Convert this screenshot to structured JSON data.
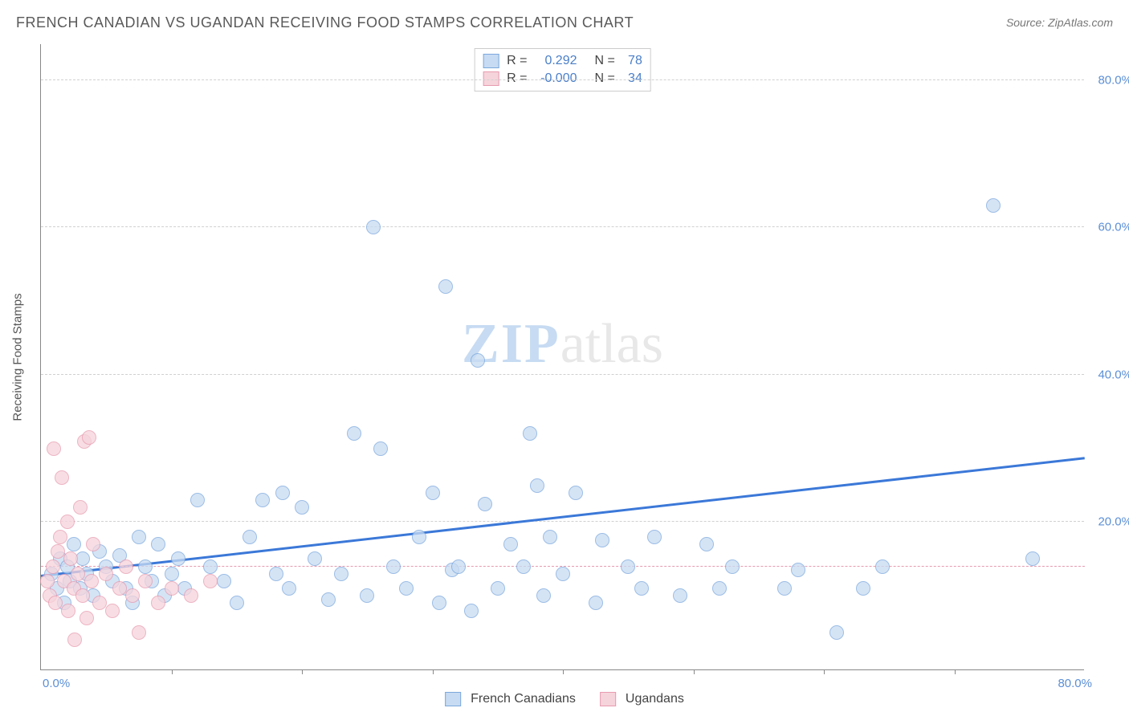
{
  "title": "FRENCH CANADIAN VS UGANDAN RECEIVING FOOD STAMPS CORRELATION CHART",
  "source": "Source: ZipAtlas.com",
  "yaxis_title": "Receiving Food Stamps",
  "watermark": {
    "part1": "ZIP",
    "part2": "atlas"
  },
  "chart": {
    "type": "scatter",
    "xlim": [
      0,
      80
    ],
    "ylim": [
      0,
      85
    ],
    "xaxis_labels": {
      "min": "0.0%",
      "max": "80.0%"
    },
    "yaxis_ticks": [
      20.0,
      40.0,
      60.0,
      80.0
    ],
    "xaxis_ticks": [
      10,
      20,
      30,
      40,
      50,
      60,
      70
    ],
    "grid_color": "#d0d0d0",
    "background_color": "#ffffff",
    "axis_color": "#888888",
    "tick_label_color": "#5b8fd6",
    "marker_radius": 9,
    "marker_border_width": 1.5,
    "series": [
      {
        "name": "French Canadians",
        "fill_color": "#c7dbf2",
        "border_color": "#7ba8dd",
        "fill_opacity": 0.75,
        "R_label": "R =",
        "R": "0.292",
        "N_label": "N =",
        "N": "78",
        "trend": {
          "color": "#3b78d8",
          "width": 3,
          "dash": "solid",
          "y_at_x0": 12.5,
          "y_at_xmax": 28.5
        },
        "points": [
          [
            0.8,
            13
          ],
          [
            1.2,
            11
          ],
          [
            1.5,
            15
          ],
          [
            1.8,
            9
          ],
          [
            2.0,
            14
          ],
          [
            2.2,
            12
          ],
          [
            2.5,
            17
          ],
          [
            3.0,
            11
          ],
          [
            3.2,
            15
          ],
          [
            3.5,
            13
          ],
          [
            4.0,
            10
          ],
          [
            4.5,
            16
          ],
          [
            5.0,
            14
          ],
          [
            5.5,
            12
          ],
          [
            6.0,
            15.5
          ],
          [
            6.5,
            11
          ],
          [
            7.0,
            9
          ],
          [
            7.5,
            18
          ],
          [
            8.0,
            14
          ],
          [
            8.5,
            12
          ],
          [
            9.0,
            17
          ],
          [
            9.5,
            10
          ],
          [
            10.0,
            13
          ],
          [
            10.5,
            15
          ],
          [
            11.0,
            11
          ],
          [
            12.0,
            23
          ],
          [
            13.0,
            14
          ],
          [
            14.0,
            12
          ],
          [
            15.0,
            9
          ],
          [
            16.0,
            18
          ],
          [
            17.0,
            23
          ],
          [
            18.0,
            13
          ],
          [
            18.5,
            24
          ],
          [
            19.0,
            11
          ],
          [
            20.0,
            22
          ],
          [
            21.0,
            15
          ],
          [
            22.0,
            9.5
          ],
          [
            23.0,
            13
          ],
          [
            24.0,
            32
          ],
          [
            25.0,
            10
          ],
          [
            25.5,
            60
          ],
          [
            26.0,
            30
          ],
          [
            27.0,
            14
          ],
          [
            28.0,
            11
          ],
          [
            29.0,
            18
          ],
          [
            30.0,
            24
          ],
          [
            30.5,
            9
          ],
          [
            31.0,
            52
          ],
          [
            31.5,
            13.5
          ],
          [
            32.0,
            14
          ],
          [
            33.0,
            8
          ],
          [
            33.5,
            42
          ],
          [
            34.0,
            22.5
          ],
          [
            35.0,
            11
          ],
          [
            36.0,
            17
          ],
          [
            37.0,
            14
          ],
          [
            37.5,
            32
          ],
          [
            38.0,
            25
          ],
          [
            38.5,
            10
          ],
          [
            39.0,
            18
          ],
          [
            40.0,
            13
          ],
          [
            41.0,
            24
          ],
          [
            42.5,
            9
          ],
          [
            43.0,
            17.5
          ],
          [
            45.0,
            14
          ],
          [
            46.0,
            11
          ],
          [
            47.0,
            18
          ],
          [
            49.0,
            10
          ],
          [
            51.0,
            17
          ],
          [
            52.0,
            11
          ],
          [
            53.0,
            14
          ],
          [
            57.0,
            11
          ],
          [
            58.0,
            13.5
          ],
          [
            61.0,
            5
          ],
          [
            63.0,
            11
          ],
          [
            64.5,
            14
          ],
          [
            73.0,
            63
          ],
          [
            76.0,
            15
          ]
        ]
      },
      {
        "name": "Ugandans",
        "fill_color": "#f6d4dc",
        "border_color": "#e79bb0",
        "fill_opacity": 0.75,
        "R_label": "R =",
        "R": "-0.000",
        "N_label": "N =",
        "N": "34",
        "trend": {
          "color": "#e79bb0",
          "width": 1.5,
          "dash": "dashed",
          "y_at_x0": 14.0,
          "y_at_xmax": 14.0
        },
        "points": [
          [
            0.5,
            12
          ],
          [
            0.7,
            10
          ],
          [
            0.9,
            14
          ],
          [
            1.0,
            30
          ],
          [
            1.1,
            9
          ],
          [
            1.3,
            16
          ],
          [
            1.5,
            18
          ],
          [
            1.6,
            26
          ],
          [
            1.8,
            12
          ],
          [
            2.0,
            20
          ],
          [
            2.1,
            8
          ],
          [
            2.3,
            15
          ],
          [
            2.5,
            11
          ],
          [
            2.6,
            4
          ],
          [
            2.8,
            13
          ],
          [
            3.0,
            22
          ],
          [
            3.2,
            10
          ],
          [
            3.3,
            31
          ],
          [
            3.5,
            7
          ],
          [
            3.7,
            31.5
          ],
          [
            3.9,
            12
          ],
          [
            4.0,
            17
          ],
          [
            4.5,
            9
          ],
          [
            5.0,
            13
          ],
          [
            5.5,
            8
          ],
          [
            6.0,
            11
          ],
          [
            6.5,
            14
          ],
          [
            7.0,
            10
          ],
          [
            7.5,
            5
          ],
          [
            8.0,
            12
          ],
          [
            9.0,
            9
          ],
          [
            10.0,
            11
          ],
          [
            11.5,
            10
          ],
          [
            13.0,
            12
          ]
        ]
      }
    ]
  },
  "bottom_legend": [
    {
      "label": "French Canadians",
      "fill": "#c7dbf2",
      "border": "#7ba8dd"
    },
    {
      "label": "Ugandans",
      "fill": "#f6d4dc",
      "border": "#e79bb0"
    }
  ]
}
